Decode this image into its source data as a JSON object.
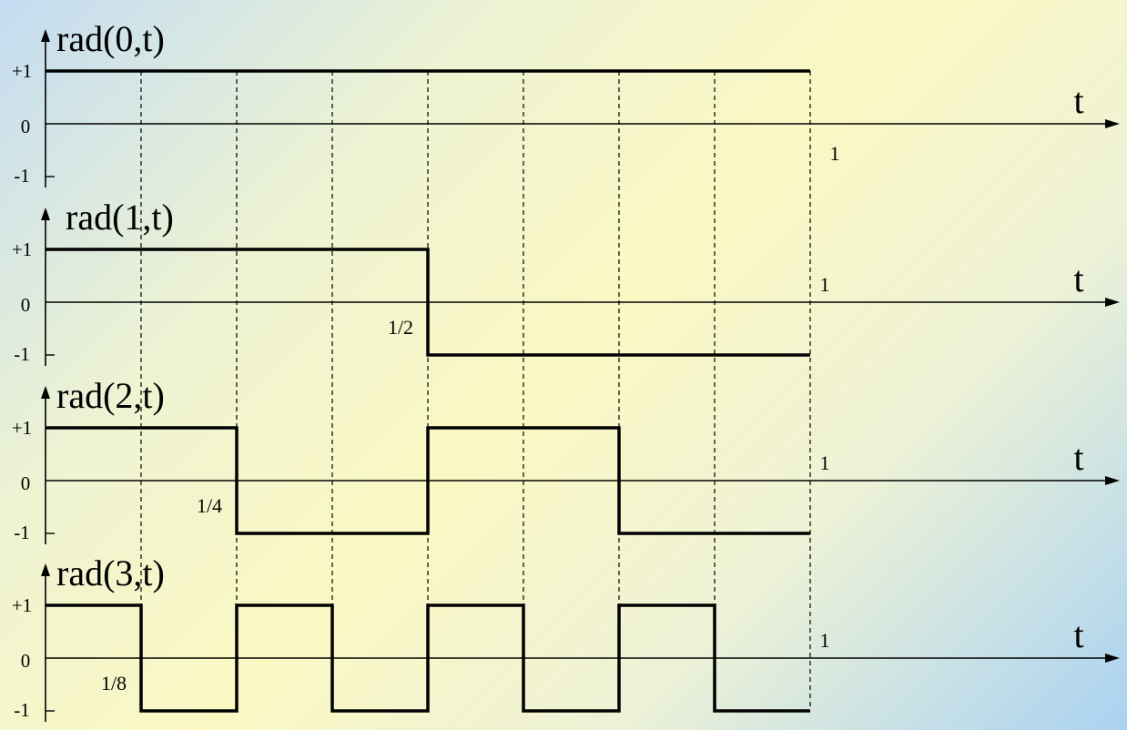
{
  "panels": [
    {
      "title": "rad(0,t)",
      "y_ticks": [
        "+1",
        "0",
        "-1"
      ],
      "axis_label": "t",
      "end_label": "1",
      "values": [
        1,
        1,
        1,
        1,
        1,
        1,
        1,
        1
      ],
      "marker": null
    },
    {
      "title": "rad(1,t)",
      "y_ticks": [
        "+1",
        "0",
        "-1"
      ],
      "axis_label": "t",
      "end_label": "1",
      "values": [
        1,
        1,
        1,
        1,
        -1,
        -1,
        -1,
        -1
      ],
      "marker": {
        "label": "1/2",
        "t": 0.5
      }
    },
    {
      "title": "rad(2,t)",
      "y_ticks": [
        "+1",
        "0",
        "-1"
      ],
      "axis_label": "t",
      "end_label": "1",
      "values": [
        1,
        1,
        -1,
        -1,
        1,
        1,
        -1,
        -1
      ],
      "marker": {
        "label": "1/4",
        "t": 0.25
      }
    },
    {
      "title": "rad(3,t)",
      "y_ticks": [
        "+1",
        "0",
        "-1"
      ],
      "axis_label": "t",
      "end_label": "1",
      "values": [
        1,
        -1,
        1,
        -1,
        1,
        -1,
        1,
        -1
      ],
      "marker": {
        "label": "1/8",
        "t": 0.125
      }
    }
  ],
  "grid_divisions": 8,
  "colors": {
    "ink": "#000000"
  }
}
